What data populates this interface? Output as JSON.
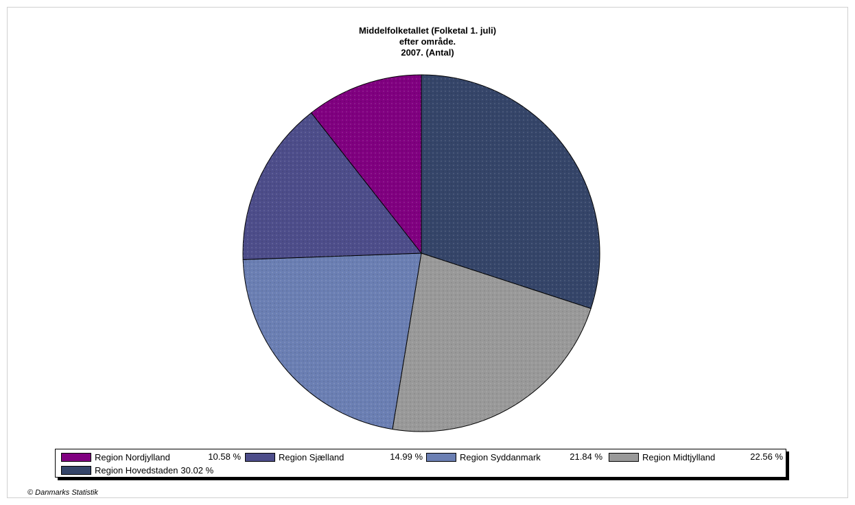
{
  "chart_data": {
    "type": "pie",
    "title": [
      "Middelfolketallet (Folketal 1. juli)",
      "efter område.",
      "2007. (Antal)"
    ],
    "slices": [
      {
        "label": "Region Hovedstaden",
        "pct_label": "30.02 %",
        "value": 30.02,
        "color": "#354569"
      },
      {
        "label": "Region Midtjylland",
        "pct_label": "22.56 %",
        "value": 22.56,
        "color": "#999999"
      },
      {
        "label": "Region Syddanmark",
        "pct_label": "21.84 %",
        "value": 21.84,
        "color": "#6b7fb3"
      },
      {
        "label": "Region Sjælland",
        "pct_label": "14.99 %",
        "value": 14.99,
        "color": "#4d4d8a"
      },
      {
        "label": "Region Nordjylland",
        "pct_label": "10.58 %",
        "value": 10.58,
        "color": "#800080"
      }
    ],
    "legend": [
      {
        "label": "Region Nordjylland",
        "pct_label": "10.58 %",
        "color": "#800080"
      },
      {
        "label": "Region Sjælland",
        "pct_label": "14.99 %",
        "color": "#4d4d8a"
      },
      {
        "label": "Region Syddanmark",
        "pct_label": "21.84 %",
        "color": "#6b7fb3"
      },
      {
        "label": "Region Midtjylland",
        "pct_label": "22.56 %",
        "color": "#999999"
      },
      {
        "label": "Region Hovedstaden",
        "pct_label": "30.02 %",
        "color": "#354569"
      }
    ],
    "legend_position": "bottom"
  },
  "footer": {
    "copyright": "© Danmarks Statistik"
  }
}
